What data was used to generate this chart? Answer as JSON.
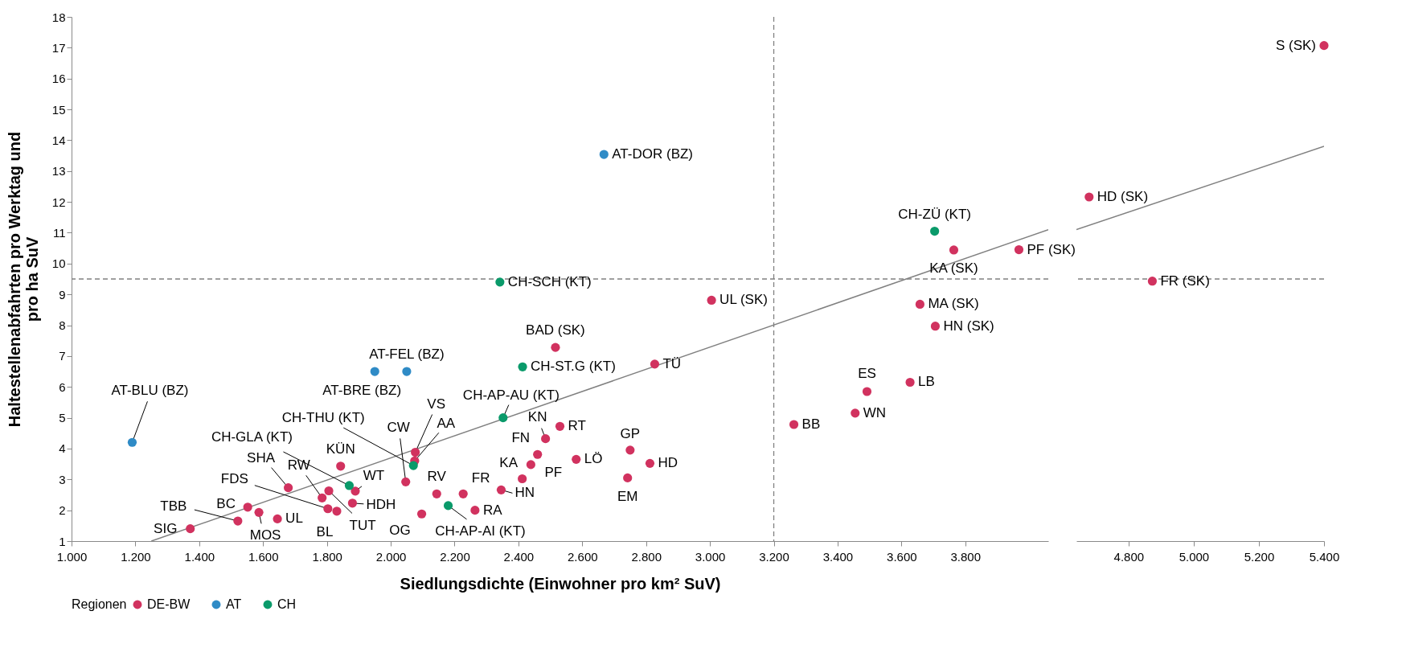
{
  "chart_data": [
    {
      "type": "scatter",
      "xlabel": "Siedlungsdichte (Einwohner pro km² SuV)",
      "ylabel": "Haltestellenabfahrten pro Werktag und pro ha SuV",
      "legend_title": "Regionen",
      "legend": "bottom",
      "marker": "circle",
      "xlim": [
        1000,
        4060
      ],
      "ylim": [
        1,
        18
      ],
      "xticks": [
        {
          "value": 1000,
          "label": "1.000"
        },
        {
          "value": 1200,
          "label": "1.200"
        },
        {
          "value": 1400,
          "label": "1.400"
        },
        {
          "value": 1600,
          "label": "1.600"
        },
        {
          "value": 1800,
          "label": "1.800"
        },
        {
          "value": 2000,
          "label": "2.000"
        },
        {
          "value": 2200,
          "label": "2.200"
        },
        {
          "value": 2400,
          "label": "2.400"
        },
        {
          "value": 2600,
          "label": "2.600"
        },
        {
          "value": 2800,
          "label": "2.800"
        },
        {
          "value": 3000,
          "label": "3.000"
        },
        {
          "value": 3200,
          "label": "3.200"
        },
        {
          "value": 3400,
          "label": "3.400"
        },
        {
          "value": 3600,
          "label": "3.600"
        },
        {
          "value": 3800,
          "label": "3.800"
        }
      ],
      "yticks": [
        1,
        2,
        3,
        4,
        5,
        6,
        7,
        8,
        9,
        10,
        11,
        12,
        13,
        14,
        15,
        16,
        17,
        18
      ],
      "ref_lines": [
        {
          "axis": "x",
          "value": 3200,
          "color": "#808080",
          "line_style": "dashed"
        },
        {
          "axis": "y",
          "value": 9.5,
          "color": "#808080",
          "line_style": "dashed"
        }
      ],
      "series": [
        {
          "name": "DE-BW",
          "color": "#d1325f",
          "x": [
            1372,
            1521,
            1552,
            1587,
            1645,
            1679,
            1803,
            1831,
            1785,
            1806,
            1843,
            1889,
            1880,
            2047,
            2077,
            2075,
            2097,
            2144,
            2227,
            2264,
            2346,
            2412,
            2439,
            2460,
            2485,
            2530,
            2516,
            2827,
            2581,
            2750,
            2812,
            2742,
            3005,
            3263,
            3455,
            3492,
            3627,
            3658,
            3706,
            3764,
            3968
          ],
          "values": [
            1.4,
            1.65,
            2.1,
            1.93,
            1.72,
            2.73,
            2.05,
            1.97,
            2.4,
            2.63,
            3.43,
            2.62,
            2.23,
            2.92,
            3.88,
            3.6,
            1.88,
            2.53,
            2.53,
            2.0,
            2.66,
            3.02,
            3.48,
            3.81,
            4.32,
            4.72,
            7.28,
            6.74,
            3.65,
            3.95,
            3.52,
            3.05,
            8.81,
            4.78,
            5.15,
            5.85,
            6.15,
            8.68,
            7.97,
            10.44,
            10.45
          ]
        },
        {
          "name": "AT",
          "color": "#2f8bc6",
          "x": [
            1190,
            1950,
            2050,
            2668
          ],
          "values": [
            4.2,
            6.5,
            6.5,
            13.54
          ]
        },
        {
          "name": "CH",
          "color": "#0a9a6a",
          "x": [
            2342,
            2413,
            2352,
            2180,
            2071,
            1870,
            3704
          ],
          "values": [
            9.4,
            6.65,
            5.0,
            2.15,
            3.45,
            2.8,
            11.05
          ]
        },
        {
          "type": "line",
          "marker": "none",
          "color": "#808080",
          "x": [
            1250,
            4060
          ],
          "values": [
            1.0,
            11.1
          ]
        }
      ],
      "annotations": [
        {
          "text": "AT-BLU (BZ)",
          "x": 1190,
          "y": 4.2
        },
        {
          "text": "AT-BRE (BZ)",
          "x": 1950,
          "y": 6.5
        },
        {
          "text": "AT-FEL (BZ)",
          "x": 2050,
          "y": 6.5
        },
        {
          "text": "AT-DOR (BZ)",
          "x": 2668,
          "y": 13.54
        },
        {
          "text": "CH-SCH (KT)",
          "x": 2342,
          "y": 9.4
        },
        {
          "text": "CH-ST.G (KT)",
          "x": 2413,
          "y": 6.65
        },
        {
          "text": "CH-AP-AU (KT)",
          "x": 2352,
          "y": 5.0
        },
        {
          "text": "CH-AP-AI (KT)",
          "x": 2180,
          "y": 2.15
        },
        {
          "text": "CH-THU (KT)",
          "x": 2071,
          "y": 3.45
        },
        {
          "text": "CH-GLA (KT)",
          "x": 1870,
          "y": 2.8
        },
        {
          "text": "CH-ZÜ (KT)",
          "x": 3704,
          "y": 11.05
        },
        {
          "text": "SIG",
          "x": 1372,
          "y": 1.4
        },
        {
          "text": "TBB",
          "x": 1521,
          "y": 1.65
        },
        {
          "text": "BC",
          "x": 1552,
          "y": 2.1
        },
        {
          "text": "MOS",
          "x": 1587,
          "y": 1.93
        },
        {
          "text": "UL",
          "x": 1645,
          "y": 1.72
        },
        {
          "text": "SHA",
          "x": 1679,
          "y": 2.73
        },
        {
          "text": "FDS",
          "x": 1803,
          "y": 2.05
        },
        {
          "text": "BL",
          "x": 1831,
          "y": 1.97
        },
        {
          "text": "RW",
          "x": 1785,
          "y": 2.4
        },
        {
          "text": "TUT",
          "x": 1806,
          "y": 2.63
        },
        {
          "text": "KÜN",
          "x": 1843,
          "y": 3.43
        },
        {
          "text": "WT",
          "x": 1889,
          "y": 2.62
        },
        {
          "text": "HDH",
          "x": 1880,
          "y": 2.23
        },
        {
          "text": "CW",
          "x": 2047,
          "y": 2.92
        },
        {
          "text": "VS",
          "x": 2077,
          "y": 3.88
        },
        {
          "text": "AA",
          "x": 2075,
          "y": 3.6
        },
        {
          "text": "OG",
          "x": 2097,
          "y": 1.88
        },
        {
          "text": "RV",
          "x": 2144,
          "y": 2.53
        },
        {
          "text": "FR",
          "x": 2227,
          "y": 2.53
        },
        {
          "text": "RA",
          "x": 2264,
          "y": 2.0
        },
        {
          "text": "HN",
          "x": 2346,
          "y": 2.66
        },
        {
          "text": "KA",
          "x": 2412,
          "y": 3.02
        },
        {
          "text": "PF",
          "x": 2439,
          "y": 3.48
        },
        {
          "text": "FN",
          "x": 2460,
          "y": 3.81
        },
        {
          "text": "KN",
          "x": 2485,
          "y": 4.32
        },
        {
          "text": "RT",
          "x": 2530,
          "y": 4.72
        },
        {
          "text": "BAD (SK)",
          "x": 2516,
          "y": 7.28
        },
        {
          "text": "TÜ",
          "x": 2827,
          "y": 6.74
        },
        {
          "text": "LÖ",
          "x": 2581,
          "y": 3.65
        },
        {
          "text": "GP",
          "x": 2750,
          "y": 3.95
        },
        {
          "text": "HD",
          "x": 2812,
          "y": 3.52
        },
        {
          "text": "EM",
          "x": 2742,
          "y": 3.05
        },
        {
          "text": "UL (SK)",
          "x": 3005,
          "y": 8.81
        },
        {
          "text": "BB",
          "x": 3263,
          "y": 4.78
        },
        {
          "text": "WN",
          "x": 3455,
          "y": 5.15
        },
        {
          "text": "ES",
          "x": 3492,
          "y": 5.85
        },
        {
          "text": "LB",
          "x": 3627,
          "y": 6.15
        },
        {
          "text": "MA (SK)",
          "x": 3658,
          "y": 8.68
        },
        {
          "text": "HN (SK)",
          "x": 3706,
          "y": 7.97
        },
        {
          "text": "KA (SK)",
          "x": 3764,
          "y": 10.44
        },
        {
          "text": "PF (SK)",
          "x": 3968,
          "y": 10.45
        }
      ]
    },
    {
      "type": "scatter",
      "marker": "circle",
      "tick_labels": "x",
      "xlim": [
        4640,
        5400
      ],
      "ylim": [
        1,
        18
      ],
      "xticks": [
        {
          "value": 4800,
          "label": "4.800"
        },
        {
          "value": 5000,
          "label": "5.000"
        },
        {
          "value": 5200,
          "label": "5.200"
        },
        {
          "value": 5400,
          "label": "5.400"
        }
      ],
      "yticks": [
        1,
        2,
        3,
        4,
        5,
        6,
        7,
        8,
        9,
        10,
        11,
        12,
        13,
        14,
        15,
        16,
        17,
        18
      ],
      "ref_lines": [
        {
          "axis": "y",
          "value": 9.5,
          "color": "#808080",
          "line_style": "dashed"
        }
      ],
      "series": [
        {
          "color": "#d1325f",
          "x": [
            5400,
            4679,
            4873
          ],
          "values": [
            17.07,
            12.16,
            9.43
          ]
        },
        {
          "type": "line",
          "marker": "none",
          "color": "#808080",
          "x": [
            4640,
            5400
          ],
          "values": [
            11.1,
            13.8
          ]
        }
      ],
      "annotations": [
        {
          "text": "S (SK)",
          "x": 5400,
          "y": 17.07
        },
        {
          "text": "HD (SK)",
          "x": 4679,
          "y": 12.16
        },
        {
          "text": "FR (SK)",
          "x": 4873,
          "y": 9.43
        }
      ]
    }
  ]
}
